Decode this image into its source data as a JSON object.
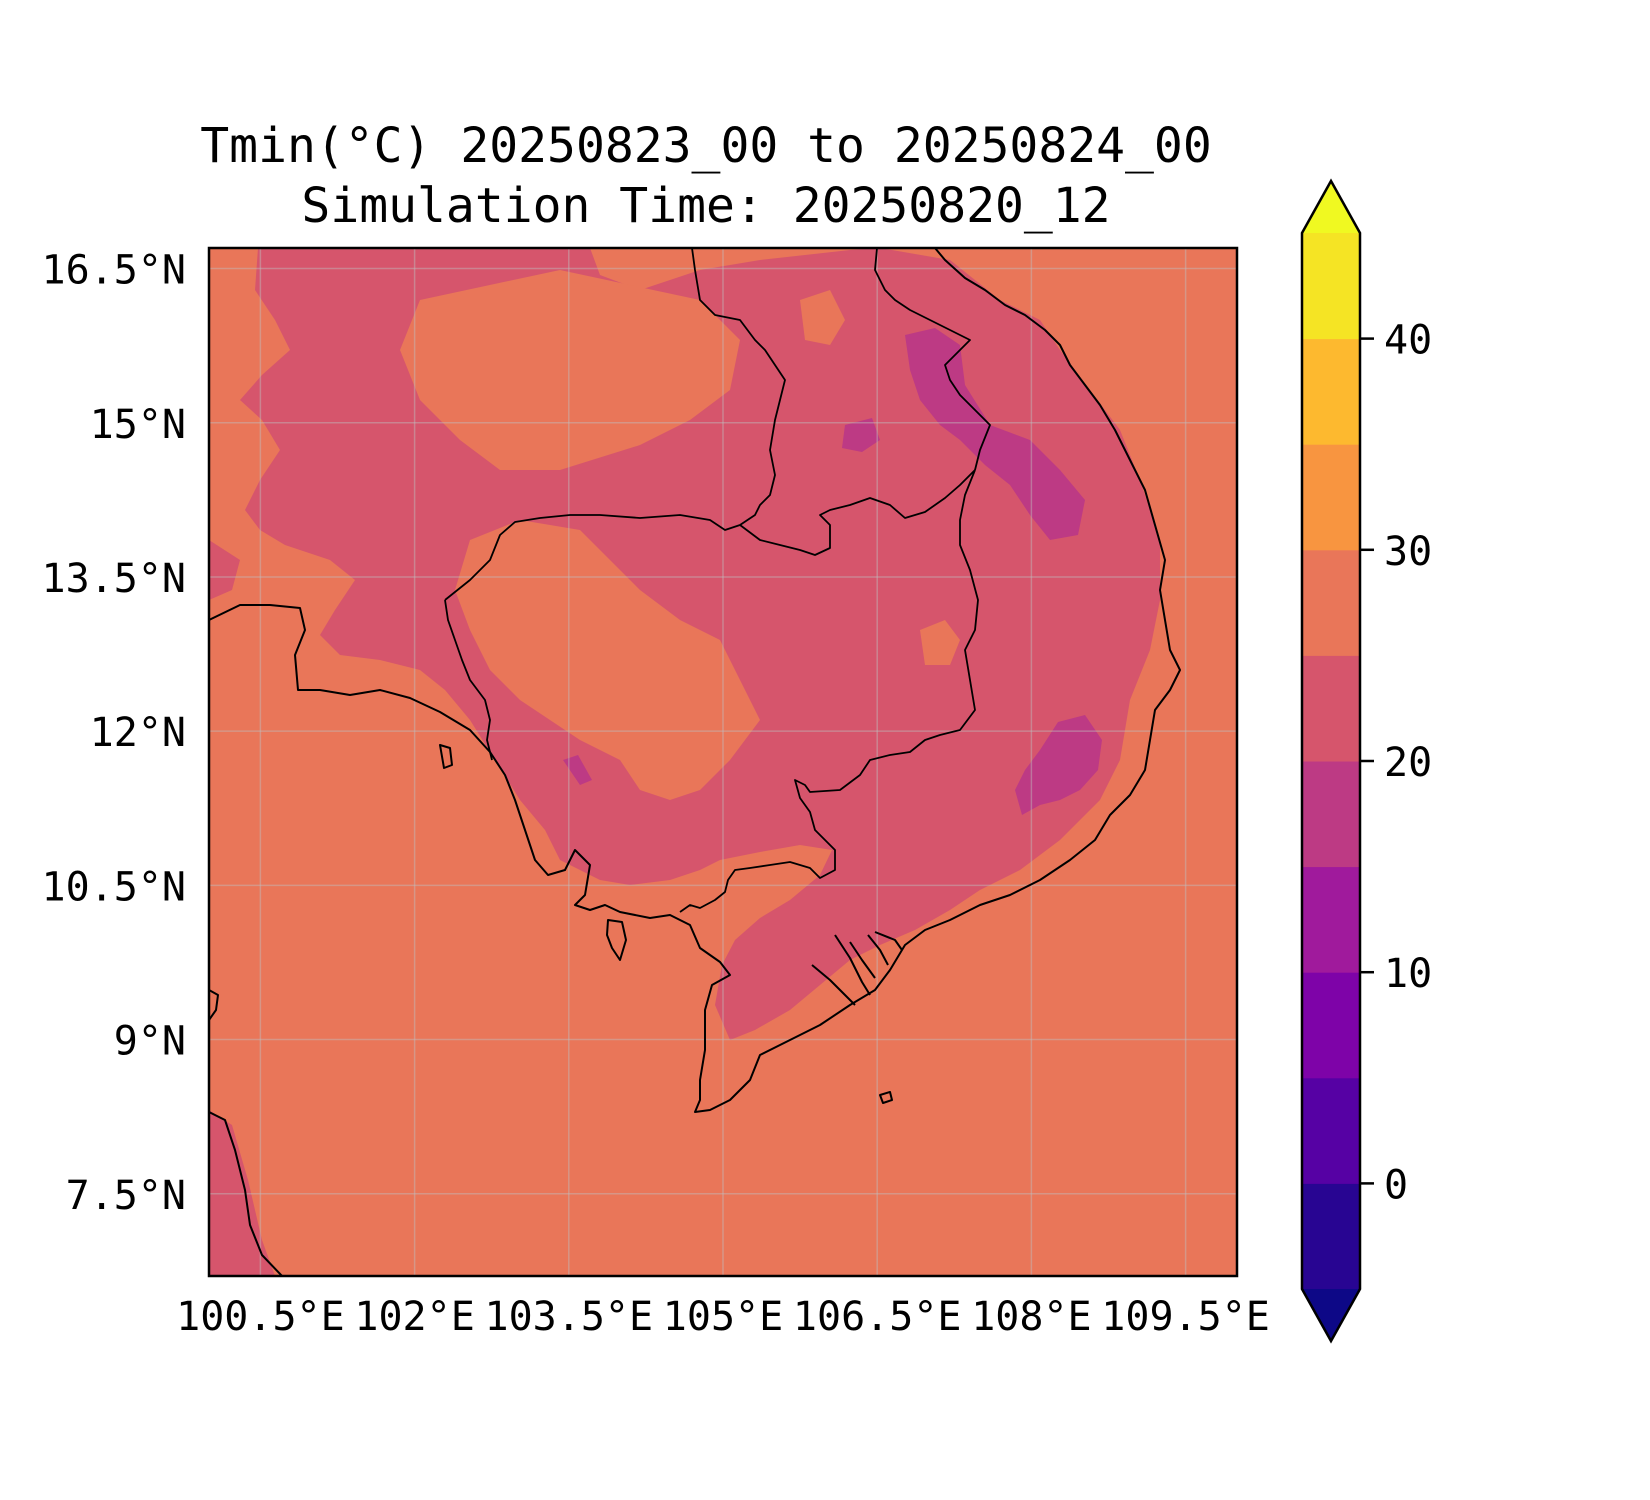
{
  "title": {
    "line1": "Tmin(°C) 20250823_00 to 20250824_00",
    "line2": "Simulation Time: 20250820_12"
  },
  "map": {
    "lon_range": [
      100.0,
      110.0
    ],
    "lat_range": [
      6.7,
      16.7
    ],
    "lon_ticks": [
      {
        "value": 100.5,
        "label": "100.5°E"
      },
      {
        "value": 102.0,
        "label": "102°E"
      },
      {
        "value": 103.5,
        "label": "103.5°E"
      },
      {
        "value": 105.0,
        "label": "105°E"
      },
      {
        "value": 106.5,
        "label": "106.5°E"
      },
      {
        "value": 108.0,
        "label": "108°E"
      },
      {
        "value": 109.5,
        "label": "109.5°E"
      }
    ],
    "lat_ticks": [
      {
        "value": 16.5,
        "label": "16.5°N"
      },
      {
        "value": 15.0,
        "label": "15°N"
      },
      {
        "value": 13.5,
        "label": "13.5°N"
      },
      {
        "value": 12.0,
        "label": "12°N"
      },
      {
        "value": 10.5,
        "label": "10.5°N"
      },
      {
        "value": 9.0,
        "label": "9°N"
      },
      {
        "value": 7.5,
        "label": "7.5°N"
      }
    ],
    "grid": true,
    "background_color": "#e97659",
    "warm_land_color": "#d6556c",
    "cool_land_color": "#bd3a84",
    "coast_color": "#000000"
  },
  "colorbar": {
    "min": -5,
    "max": 45,
    "extend": "both",
    "ticks": [
      {
        "value": 0,
        "label": "0"
      },
      {
        "value": 10,
        "label": "10"
      },
      {
        "value": 20,
        "label": "20"
      },
      {
        "value": 30,
        "label": "30"
      },
      {
        "value": 40,
        "label": "40"
      }
    ],
    "under_color": "#0d0887",
    "over_color": "#f0f921",
    "bins": [
      {
        "from": -5,
        "to": 0,
        "color": "#280592"
      },
      {
        "from": 0,
        "to": 5,
        "color": "#5601a4"
      },
      {
        "from": 5,
        "to": 10,
        "color": "#7e03a8"
      },
      {
        "from": 10,
        "to": 15,
        "color": "#a01a9c"
      },
      {
        "from": 15,
        "to": 20,
        "color": "#bd3a84"
      },
      {
        "from": 20,
        "to": 25,
        "color": "#d6556c"
      },
      {
        "from": 25,
        "to": 30,
        "color": "#e97659"
      },
      {
        "from": 30,
        "to": 35,
        "color": "#f89540"
      },
      {
        "from": 35,
        "to": 40,
        "color": "#fdb92f"
      },
      {
        "from": 40,
        "to": 45,
        "color": "#f5e424"
      }
    ]
  }
}
